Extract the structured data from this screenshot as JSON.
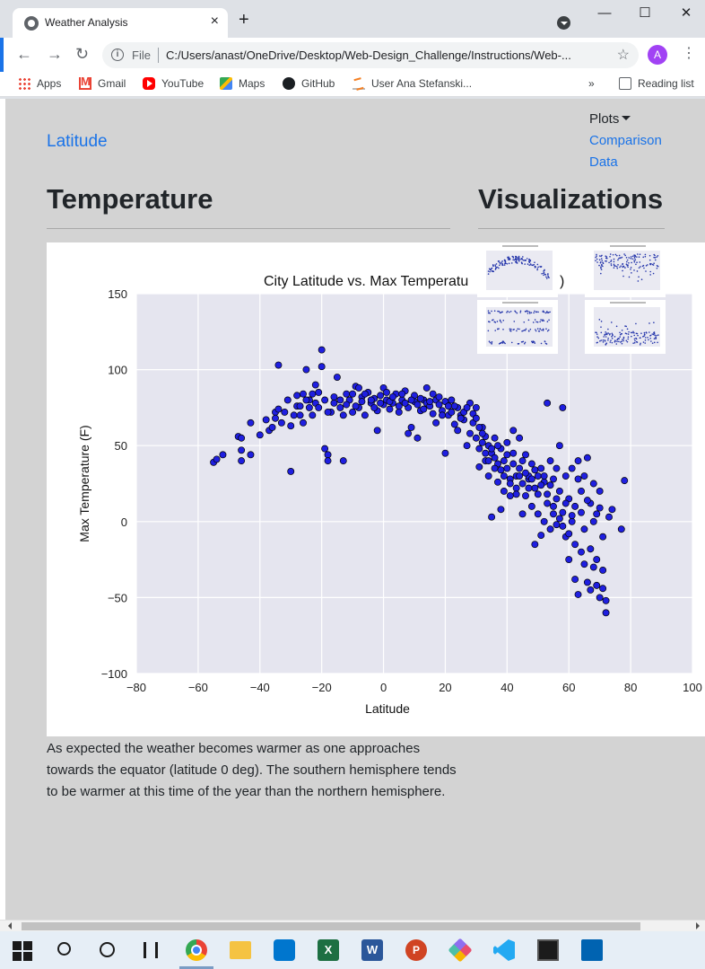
{
  "browser": {
    "tab_title": "Weather Analysis",
    "tab_close": "×",
    "new_tab": "+",
    "url_scheme": "File",
    "url": "C:/Users/anast/OneDrive/Desktop/Web-Design_Challenge/Instructions/Web-...",
    "avatar_letter": "A",
    "bookmarks": [
      "Apps",
      "Gmail",
      "YouTube",
      "Maps",
      "GitHub",
      "User Ana Stefanski..."
    ],
    "more_bookmarks": "»",
    "reading_list": "Reading list"
  },
  "nav": {
    "brand": "Latitude",
    "plots_label": "Plots",
    "comparison_label": "Comparison",
    "data_label": "Data"
  },
  "page": {
    "heading": "Temperature",
    "viz_heading": "Visualizations",
    "description": "As expected the weather becomes warmer as one approaches towards the equator (latitude 0 deg). The southern hemisphere tends to be warmer at this time of the year than the northern hemisphere."
  },
  "chart_data": {
    "type": "scatter",
    "title": "City Latitude vs. Max Temperatu",
    "title_tail": ")",
    "xlabel": "Latitude",
    "ylabel": "Max Temperature (F)",
    "xlim": [
      -80,
      100
    ],
    "ylim": [
      -100,
      150
    ],
    "xticks": [
      -80,
      -60,
      -40,
      -20,
      0,
      20,
      40,
      60,
      80,
      100
    ],
    "yticks": [
      -100,
      -50,
      0,
      50,
      100,
      150
    ],
    "marker_color": "#1f1fe0",
    "marker_edge": "#000000",
    "background": "#e5e5ef",
    "grid": true,
    "points": [
      [
        -55,
        39
      ],
      [
        -54,
        41
      ],
      [
        -52,
        44
      ],
      [
        -47,
        56
      ],
      [
        -46,
        55
      ],
      [
        -46,
        47
      ],
      [
        -46,
        40
      ],
      [
        -43,
        44
      ],
      [
        -43,
        65
      ],
      [
        -40,
        57
      ],
      [
        -38,
        67
      ],
      [
        -37,
        60
      ],
      [
        -36,
        62
      ],
      [
        -35,
        72
      ],
      [
        -35,
        68
      ],
      [
        -34,
        103
      ],
      [
        -34,
        74
      ],
      [
        -33,
        65
      ],
      [
        -32,
        72
      ],
      [
        -31,
        80
      ],
      [
        -30,
        33
      ],
      [
        -30,
        63
      ],
      [
        -29,
        70
      ],
      [
        -28,
        76
      ],
      [
        -27,
        70
      ],
      [
        -26,
        65
      ],
      [
        -26,
        84
      ],
      [
        -25,
        100
      ],
      [
        -24,
        80
      ],
      [
        -24,
        75
      ],
      [
        -23,
        70
      ],
      [
        -22,
        90
      ],
      [
        -22,
        78
      ],
      [
        -21,
        85
      ],
      [
        -20,
        113
      ],
      [
        -20,
        102
      ],
      [
        -19,
        80
      ],
      [
        -19,
        48
      ],
      [
        -18,
        44
      ],
      [
        -18,
        40
      ],
      [
        -17,
        72
      ],
      [
        -16,
        82
      ],
      [
        -15,
        95
      ],
      [
        -14,
        75
      ],
      [
        -13,
        70
      ],
      [
        -13,
        40
      ],
      [
        -12,
        84
      ],
      [
        -11,
        80
      ],
      [
        -10,
        72
      ],
      [
        -9,
        89
      ],
      [
        -8,
        75
      ],
      [
        -8,
        88
      ],
      [
        -7,
        82
      ],
      [
        -6,
        70
      ],
      [
        -5,
        85
      ],
      [
        -4,
        78
      ],
      [
        -3,
        81
      ],
      [
        -2,
        60
      ],
      [
        -2,
        73
      ],
      [
        -1,
        83
      ],
      [
        0,
        88
      ],
      [
        0,
        77
      ],
      [
        1,
        80
      ],
      [
        2,
        74
      ],
      [
        3,
        78
      ],
      [
        4,
        84
      ],
      [
        5,
        72
      ],
      [
        6,
        80
      ],
      [
        7,
        86
      ],
      [
        8,
        58
      ],
      [
        8,
        75
      ],
      [
        9,
        62
      ],
      [
        10,
        79
      ],
      [
        10,
        83
      ],
      [
        11,
        55
      ],
      [
        12,
        73
      ],
      [
        13,
        80
      ],
      [
        14,
        78
      ],
      [
        14,
        88
      ],
      [
        15,
        76
      ],
      [
        16,
        84
      ],
      [
        17,
        65
      ],
      [
        17,
        80
      ],
      [
        18,
        77
      ],
      [
        19,
        73
      ],
      [
        20,
        79
      ],
      [
        20,
        45
      ],
      [
        21,
        70
      ],
      [
        22,
        80
      ],
      [
        23,
        64
      ],
      [
        24,
        75
      ],
      [
        24,
        60
      ],
      [
        25,
        70
      ],
      [
        26,
        67
      ],
      [
        26,
        72
      ],
      [
        27,
        50
      ],
      [
        28,
        58
      ],
      [
        28,
        78
      ],
      [
        29,
        65
      ],
      [
        30,
        75
      ],
      [
        30,
        55
      ],
      [
        31,
        48
      ],
      [
        31,
        36
      ],
      [
        32,
        62
      ],
      [
        32,
        52
      ],
      [
        33,
        56
      ],
      [
        33,
        40
      ],
      [
        34,
        50
      ],
      [
        34,
        30
      ],
      [
        35,
        45
      ],
      [
        35,
        3
      ],
      [
        36,
        55
      ],
      [
        36,
        42
      ],
      [
        37,
        38
      ],
      [
        37,
        26
      ],
      [
        38,
        48
      ],
      [
        38,
        8
      ],
      [
        39,
        40
      ],
      [
        39,
        20
      ],
      [
        40,
        52
      ],
      [
        40,
        35
      ],
      [
        41,
        28
      ],
      [
        41,
        17
      ],
      [
        42,
        60
      ],
      [
        42,
        45
      ],
      [
        43,
        30
      ],
      [
        43,
        22
      ],
      [
        44,
        55
      ],
      [
        44,
        35
      ],
      [
        45,
        25
      ],
      [
        45,
        5
      ],
      [
        46,
        44
      ],
      [
        46,
        17
      ],
      [
        47,
        28
      ],
      [
        47,
        30
      ],
      [
        48,
        38
      ],
      [
        48,
        10
      ],
      [
        49,
        22
      ],
      [
        49,
        -15
      ],
      [
        50,
        30
      ],
      [
        50,
        5
      ],
      [
        51,
        35
      ],
      [
        51,
        -9
      ],
      [
        52,
        26
      ],
      [
        52,
        0
      ],
      [
        53,
        78
      ],
      [
        53,
        18
      ],
      [
        54,
        40
      ],
      [
        54,
        -5
      ],
      [
        55,
        28
      ],
      [
        55,
        10
      ],
      [
        56,
        35
      ],
      [
        56,
        -2
      ],
      [
        57,
        50
      ],
      [
        57,
        20
      ],
      [
        58,
        75
      ],
      [
        58,
        6
      ],
      [
        59,
        30
      ],
      [
        59,
        -10
      ],
      [
        60,
        15
      ],
      [
        60,
        -25
      ],
      [
        61,
        35
      ],
      [
        61,
        0
      ],
      [
        62,
        -38
      ],
      [
        62,
        10
      ],
      [
        63,
        40
      ],
      [
        63,
        -48
      ],
      [
        64,
        20
      ],
      [
        64,
        -20
      ],
      [
        65,
        30
      ],
      [
        65,
        -5
      ],
      [
        66,
        42
      ],
      [
        66,
        -40
      ],
      [
        67,
        12
      ],
      [
        67,
        -45
      ],
      [
        68,
        25
      ],
      [
        68,
        -30
      ],
      [
        69,
        5
      ],
      [
        69,
        -42
      ],
      [
        70,
        20
      ],
      [
        70,
        -50
      ],
      [
        71,
        -10
      ],
      [
        71,
        -32
      ],
      [
        72,
        -60
      ],
      [
        72,
        -52
      ],
      [
        73,
        3
      ],
      [
        74,
        8
      ],
      [
        77,
        -5
      ],
      [
        78,
        27
      ],
      [
        -28,
        83
      ],
      [
        -27,
        76
      ],
      [
        -25,
        80
      ],
      [
        -23,
        84
      ],
      [
        -21,
        75
      ],
      [
        -18,
        72
      ],
      [
        -16,
        78
      ],
      [
        -14,
        80
      ],
      [
        -12,
        77
      ],
      [
        -10,
        84
      ],
      [
        -9,
        76
      ],
      [
        -7,
        79
      ],
      [
        -6,
        84
      ],
      [
        -4,
        80
      ],
      [
        -3,
        75
      ],
      [
        -1,
        78
      ],
      [
        1,
        85
      ],
      [
        2,
        79
      ],
      [
        3,
        82
      ],
      [
        5,
        76
      ],
      [
        6,
        84
      ],
      [
        7,
        78
      ],
      [
        9,
        80
      ],
      [
        11,
        77
      ],
      [
        12,
        81
      ],
      [
        13,
        74
      ],
      [
        15,
        79
      ],
      [
        16,
        71
      ],
      [
        18,
        82
      ],
      [
        19,
        70
      ],
      [
        21,
        76
      ],
      [
        22,
        72
      ],
      [
        23,
        76
      ],
      [
        25,
        68
      ],
      [
        27,
        75
      ],
      [
        29,
        71
      ],
      [
        30,
        68
      ],
      [
        31,
        62
      ],
      [
        32,
        58
      ],
      [
        33,
        45
      ],
      [
        34,
        40
      ],
      [
        35,
        48
      ],
      [
        36,
        35
      ],
      [
        37,
        50
      ],
      [
        38,
        34
      ],
      [
        39,
        30
      ],
      [
        40,
        44
      ],
      [
        41,
        25
      ],
      [
        42,
        38
      ],
      [
        43,
        18
      ],
      [
        44,
        30
      ],
      [
        45,
        40
      ],
      [
        46,
        32
      ],
      [
        47,
        22
      ],
      [
        48,
        28
      ],
      [
        49,
        34
      ],
      [
        50,
        18
      ],
      [
        51,
        24
      ],
      [
        52,
        30
      ],
      [
        53,
        12
      ],
      [
        54,
        24
      ],
      [
        55,
        5
      ],
      [
        56,
        15
      ],
      [
        57,
        2
      ],
      [
        58,
        -3
      ],
      [
        59,
        12
      ],
      [
        60,
        -8
      ],
      [
        61,
        4
      ],
      [
        62,
        -15
      ],
      [
        63,
        28
      ],
      [
        64,
        6
      ],
      [
        65,
        -28
      ],
      [
        66,
        14
      ],
      [
        67,
        -18
      ],
      [
        68,
        0
      ],
      [
        69,
        -25
      ],
      [
        70,
        9
      ],
      [
        71,
        -44
      ]
    ]
  },
  "thumbnails": [
    {
      "name": "latitude-vs-temperature-thumbnail",
      "shape": "arc"
    },
    {
      "name": "latitude-vs-humidity-thumbnail",
      "shape": "band-top"
    },
    {
      "name": "latitude-vs-cloudiness-thumbnail",
      "shape": "rows"
    },
    {
      "name": "latitude-vs-wind-speed-thumbnail",
      "shape": "band-bottom"
    }
  ],
  "taskbar": [
    "windows-start",
    "search",
    "cortana",
    "task-view",
    "chrome",
    "file-explorer",
    "dell",
    "excel",
    "word",
    "powerpoint",
    "gem",
    "vscode",
    "terminal",
    "photos"
  ]
}
